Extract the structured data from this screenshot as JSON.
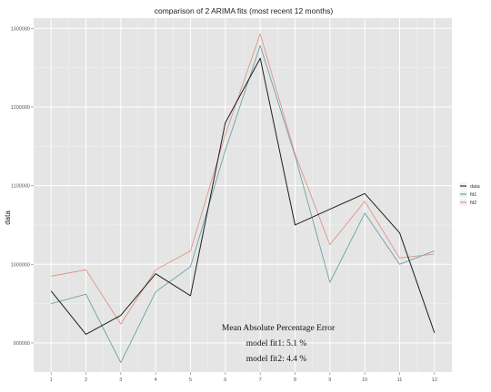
{
  "chart_data": {
    "type": "line",
    "title": "comparison of 2 ARIMA fits (most recent 12 months)",
    "xlabel": "",
    "ylabel": "data",
    "x": [
      1,
      2,
      3,
      4,
      5,
      6,
      7,
      8,
      9,
      10,
      11,
      12
    ],
    "x_ticks": [
      "1",
      "2",
      "3",
      "4",
      "5",
      "6",
      "7",
      "8",
      "9",
      "10",
      "11",
      "12"
    ],
    "y_ticks": [
      {
        "value": 900000,
        "label": "900000"
      },
      {
        "value": 1000000,
        "label": "1000000"
      },
      {
        "value": 1100000,
        "label": "1100000"
      },
      {
        "value": 1200000,
        "label": "1200000"
      },
      {
        "value": 1300000,
        "label": "1300000"
      }
    ],
    "xlim": [
      0.5,
      12.5
    ],
    "ylim": [
      863000,
      1313000
    ],
    "grid": true,
    "legend_position": "right",
    "series": [
      {
        "name": "data",
        "color": "#1f1f1f",
        "width": 1.0,
        "values": [
          966000,
          911000,
          935000,
          988000,
          960000,
          1180000,
          1262000,
          1050000,
          1070000,
          1090000,
          1040000,
          913000
        ]
      },
      {
        "name": "fit1",
        "color": "#5f9b9b",
        "width": 0.8,
        "values": [
          950000,
          962000,
          875000,
          965000,
          997000,
          1145000,
          1278000,
          1138000,
          977000,
          1065000,
          1000000,
          1017000
        ]
      },
      {
        "name": "fit2",
        "color": "#e08a7d",
        "width": 0.8,
        "values": [
          985000,
          993000,
          924000,
          993000,
          1017000,
          1165000,
          1293000,
          1140000,
          1025000,
          1080000,
          1008000,
          1013000
        ]
      }
    ],
    "annotations": [
      "Mean Absolute Percentage Error",
      "model fit1: 5.1 %",
      "model fit2: 4.4 %"
    ]
  }
}
